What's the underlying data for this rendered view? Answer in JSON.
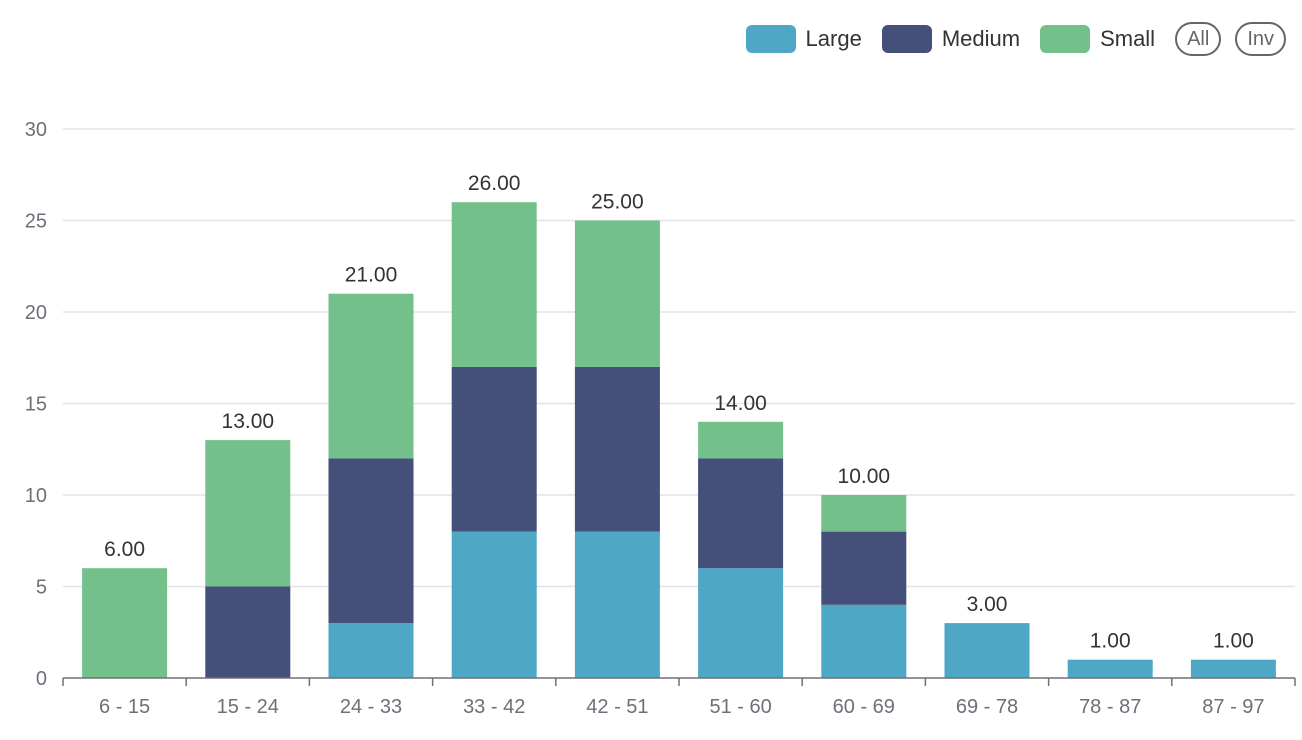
{
  "legend": {
    "items": [
      {
        "name": "Large",
        "color": "#4fa7c6"
      },
      {
        "name": "Medium",
        "color": "#45507a"
      },
      {
        "name": "Small",
        "color": "#74c08b"
      }
    ],
    "all_label": "All",
    "inv_label": "Inv"
  },
  "chart_data": {
    "type": "bar",
    "stacked": true,
    "categories": [
      "6 - 15",
      "15 - 24",
      "24 - 33",
      "33 - 42",
      "42 - 51",
      "51 - 60",
      "60 - 69",
      "69 - 78",
      "78 - 87",
      "87 - 97"
    ],
    "series": [
      {
        "name": "Large",
        "color": "#4fa7c6",
        "values": [
          0,
          0,
          3,
          8,
          8,
          6,
          4,
          3,
          1,
          1
        ]
      },
      {
        "name": "Medium",
        "color": "#45507a",
        "values": [
          0,
          5,
          9,
          9,
          9,
          6,
          4,
          0,
          0,
          0
        ]
      },
      {
        "name": "Small",
        "color": "#74c08b",
        "values": [
          6,
          8,
          9,
          9,
          8,
          2,
          2,
          0,
          0,
          0
        ]
      }
    ],
    "totals": [
      "6.00",
      "13.00",
      "21.00",
      "26.00",
      "25.00",
      "14.00",
      "10.00",
      "3.00",
      "1.00",
      "1.00"
    ],
    "yticks": [
      "0",
      "5",
      "10",
      "15",
      "20",
      "25",
      "30"
    ],
    "ylim": [
      0,
      30
    ],
    "grid": true,
    "legend_position": "top-right"
  }
}
